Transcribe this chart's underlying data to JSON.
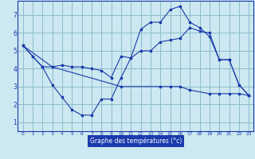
{
  "title": "Graphe des températures (°c)",
  "bg_color": "#cce8f0",
  "grid_color": "#8bbccc",
  "line_color": "#1a3aad",
  "xlabel_bg": "#1a3aad",
  "xlabel_fg": "#ffffff",
  "xlim": [
    -0.5,
    23.5
  ],
  "ylim": [
    0.5,
    7.8
  ],
  "xticks": [
    0,
    1,
    2,
    3,
    4,
    5,
    6,
    7,
    8,
    9,
    10,
    11,
    12,
    13,
    14,
    15,
    16,
    17,
    18,
    19,
    20,
    21,
    22,
    23
  ],
  "yticks": [
    1,
    2,
    3,
    4,
    5,
    6,
    7
  ],
  "line1_x": [
    0,
    1,
    2,
    3,
    4,
    5,
    6,
    7,
    8,
    9,
    10,
    11,
    12,
    13,
    14,
    15,
    16,
    17,
    18,
    19,
    20,
    21,
    22,
    23
  ],
  "line1_y": [
    5.3,
    4.7,
    4.1,
    4.1,
    4.2,
    4.1,
    4.1,
    4.0,
    3.9,
    3.5,
    4.7,
    4.6,
    5.0,
    5.0,
    5.5,
    5.6,
    5.7,
    6.3,
    6.1,
    6.0,
    4.5,
    4.5,
    3.1,
    2.5
  ],
  "line2_x": [
    0,
    1,
    2,
    3,
    4,
    5,
    6,
    7,
    8,
    9,
    10,
    11,
    12,
    13,
    14,
    15,
    16,
    17,
    18,
    19,
    20,
    21,
    22,
    23
  ],
  "line2_y": [
    5.3,
    4.7,
    4.1,
    3.1,
    2.4,
    1.7,
    1.4,
    1.4,
    2.3,
    2.3,
    3.5,
    4.6,
    6.2,
    6.6,
    6.6,
    7.3,
    7.5,
    6.6,
    6.3,
    5.8,
    4.5,
    4.5,
    3.1,
    2.5
  ],
  "line3_x": [
    0,
    3,
    10,
    14,
    15,
    16,
    17,
    19,
    20,
    21,
    22,
    23
  ],
  "line3_y": [
    5.3,
    4.1,
    3.0,
    3.0,
    3.0,
    3.0,
    2.8,
    2.6,
    2.6,
    2.6,
    2.6,
    2.5
  ]
}
